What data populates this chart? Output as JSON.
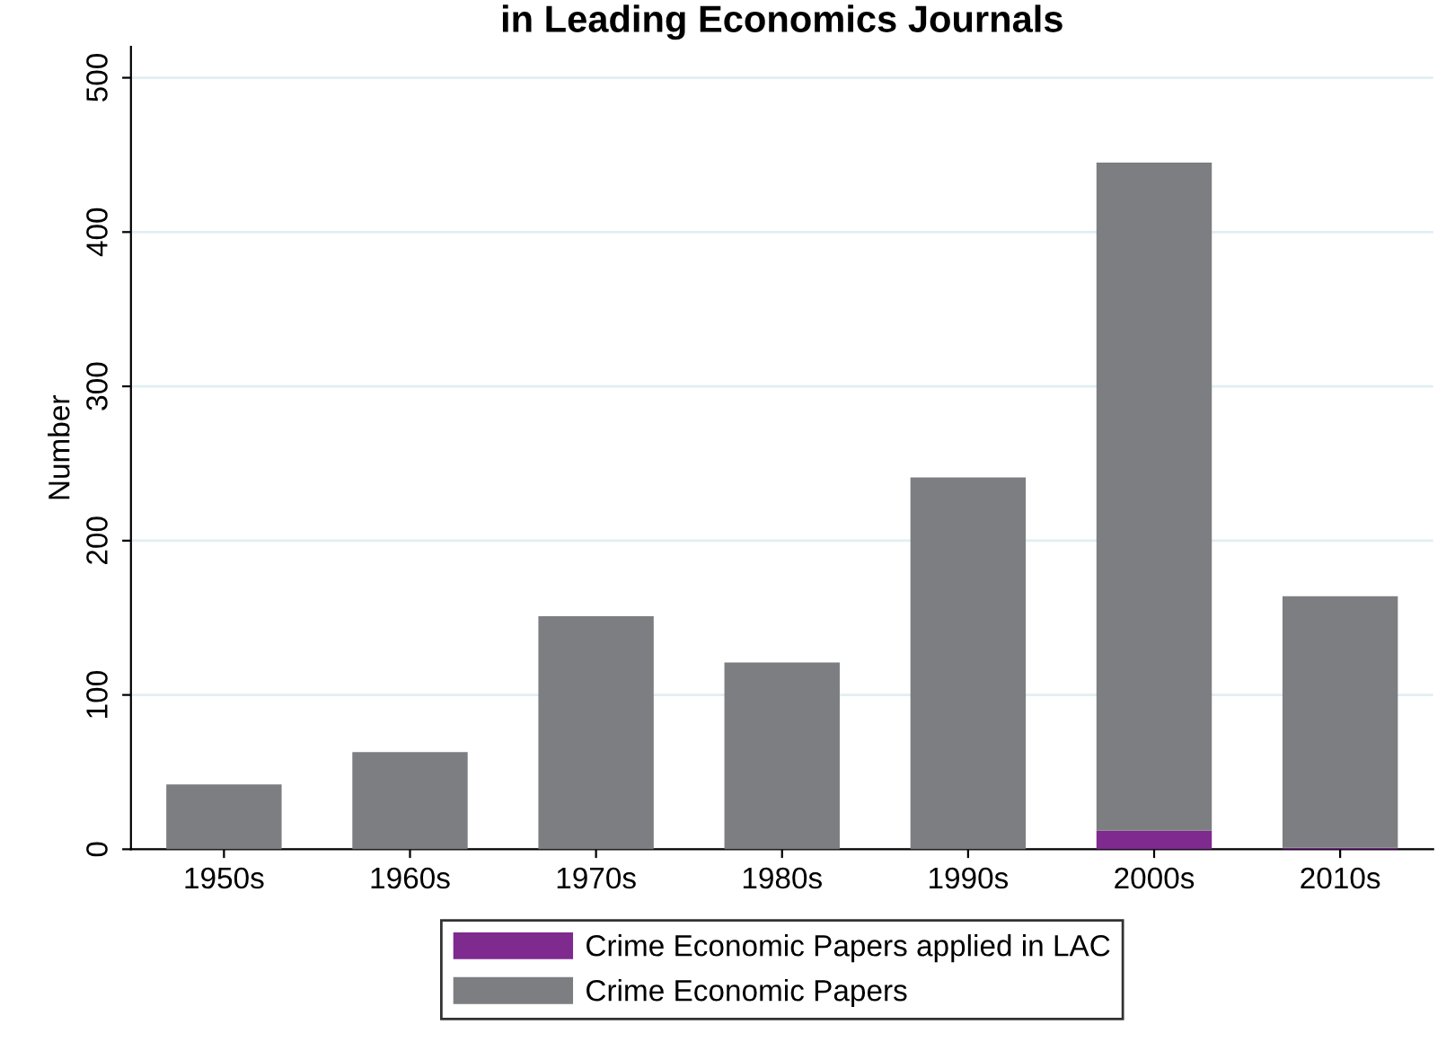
{
  "chart_data": {
    "type": "bar",
    "title": "in Leading Economics Journals",
    "ylabel": "Number",
    "categories": [
      "1950s",
      "1960s",
      "1970s",
      "1980s",
      "1990s",
      "2000s",
      "2010s"
    ],
    "stacked": true,
    "series": [
      {
        "name": "Crime Economic Papers applied in LAC",
        "color": "#7e2a8e",
        "values": [
          0,
          0,
          0,
          0,
          0,
          12,
          1
        ]
      },
      {
        "name": "Crime Economic Papers",
        "color": "#7d7e82",
        "values": [
          42,
          63,
          151,
          121,
          241,
          433,
          163
        ]
      }
    ],
    "ylim": [
      0,
      520
    ],
    "yticks": [
      0,
      100,
      200,
      300,
      400,
      500
    ],
    "grid": "y",
    "legend": "bottom"
  }
}
